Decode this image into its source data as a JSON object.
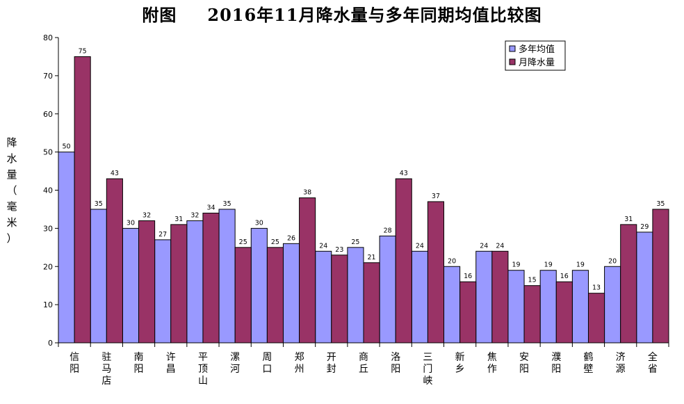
{
  "title_prefix": "附图",
  "title_main": "2016年11月降水量与多年同期均值比较图",
  "chart_data": {
    "type": "bar",
    "title": "附图　2016年11月降水量与多年同期均值比较图",
    "ylabel": "降水量（毫米）",
    "ylim": [
      0,
      80
    ],
    "yticks": [
      0,
      10,
      20,
      30,
      40,
      50,
      60,
      70,
      80
    ],
    "grid": false,
    "legend_position": "top-right",
    "categories": [
      "信阳",
      "驻马店",
      "南阳",
      "许昌",
      "平顶山",
      "漯河",
      "周口",
      "郑州",
      "开封",
      "商丘",
      "洛阳",
      "三门峡",
      "新乡",
      "焦作",
      "安阳",
      "濮阳",
      "鹤壁",
      "济源",
      "全省"
    ],
    "series": [
      {
        "name": "多年均值",
        "color": "#9999ff",
        "values": [
          50,
          35,
          30,
          27,
          32,
          35,
          30,
          26,
          24,
          25,
          28,
          24,
          20,
          24,
          19,
          19,
          19,
          20,
          29
        ]
      },
      {
        "name": "月降水量",
        "color": "#993366",
        "values": [
          75,
          43,
          32,
          31,
          34,
          25,
          25,
          38,
          23,
          21,
          43,
          37,
          16,
          24,
          15,
          16,
          13,
          31,
          35
        ]
      }
    ]
  }
}
